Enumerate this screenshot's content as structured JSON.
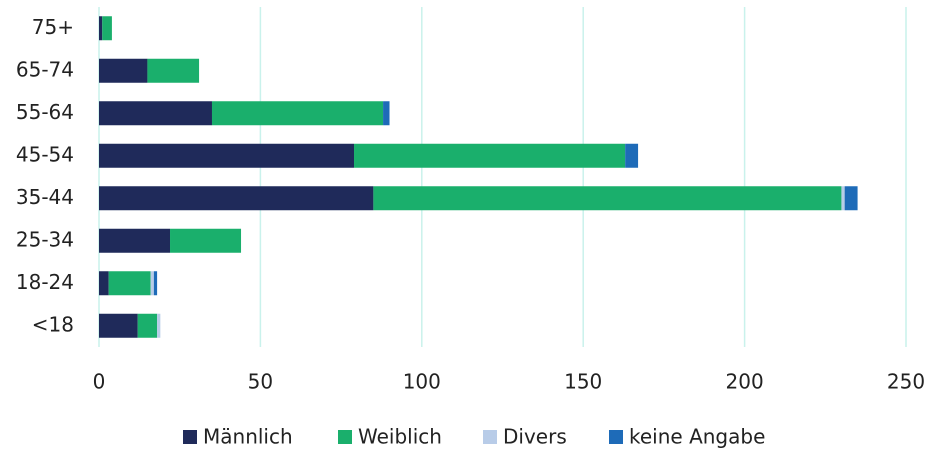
{
  "chart_data": {
    "type": "bar",
    "orientation": "horizontal",
    "stacked": true,
    "categories": [
      "75+",
      "65-74",
      "55-64",
      "45-54",
      "35-44",
      "25-34",
      "18-24",
      "<18"
    ],
    "series": [
      {
        "name": "Männlich",
        "color": "#1f2a5a",
        "values": [
          1,
          15,
          35,
          79,
          85,
          22,
          3,
          12
        ]
      },
      {
        "name": "Weiblich",
        "color": "#1aaf6c",
        "values": [
          3,
          16,
          53,
          84,
          145,
          22,
          13,
          6
        ]
      },
      {
        "name": "Divers",
        "color": "#b8cce8",
        "values": [
          0,
          0,
          0,
          0,
          1,
          0,
          1,
          1
        ]
      },
      {
        "name": "keine Angabe",
        "color": "#1e6bb8",
        "values": [
          0,
          0,
          2,
          4,
          4,
          0,
          1,
          0
        ]
      }
    ],
    "xlim": [
      0,
      250
    ],
    "xticks": [
      0,
      50,
      100,
      150,
      200,
      250
    ],
    "grid": true,
    "legend": "bottom"
  }
}
